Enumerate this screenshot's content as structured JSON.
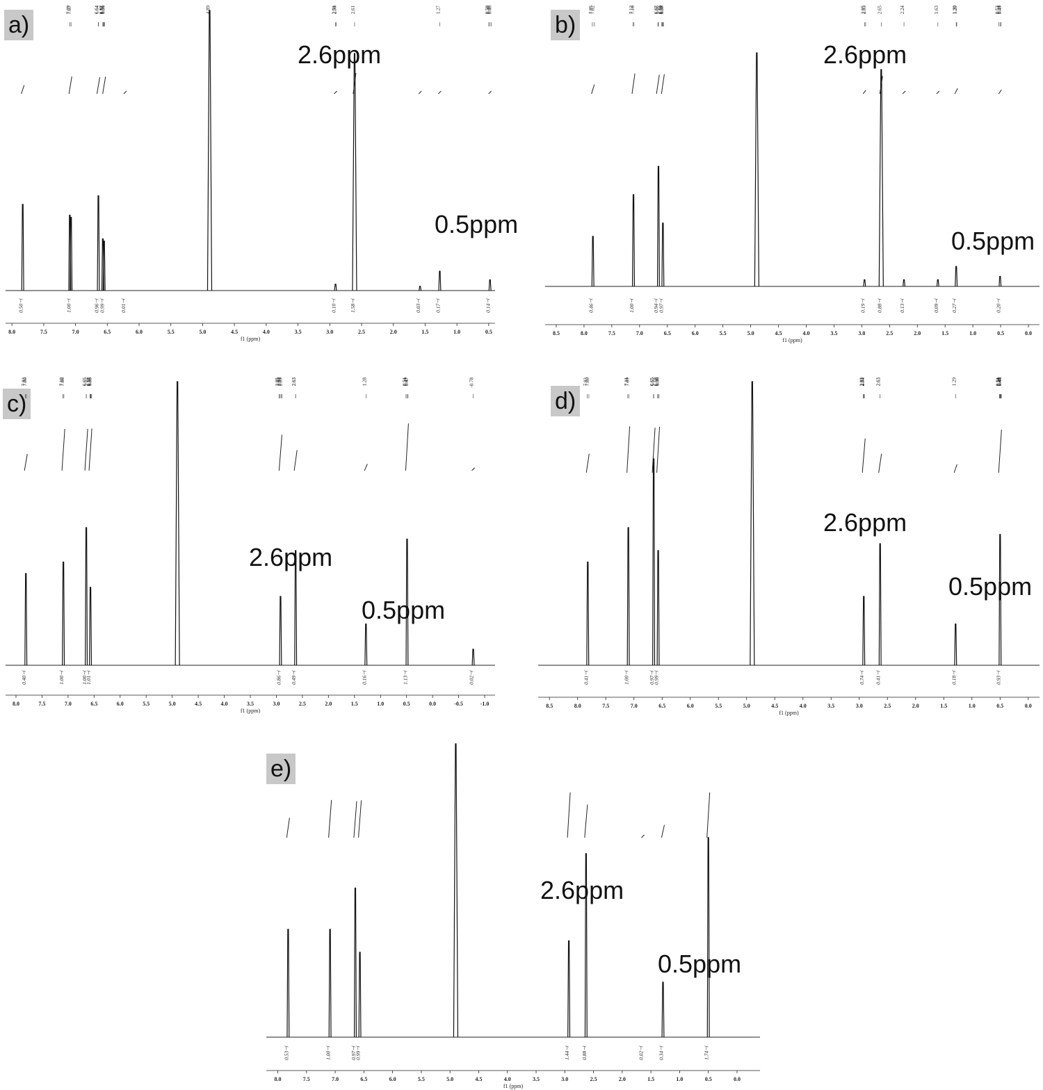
{
  "figure": {
    "annotations": {
      "peak_a": "2.6ppm",
      "peak_b": "0.5ppm"
    }
  },
  "chart_data": [
    {
      "panel": "a)",
      "type": "line",
      "xlabel": "f1 (ppm)",
      "xlim": [
        8.1,
        0.4
      ],
      "ticks": [
        8.0,
        7.5,
        7.0,
        6.5,
        6.0,
        5.5,
        5.0,
        4.5,
        4.0,
        3.5,
        3.0,
        2.5,
        2.0,
        1.5,
        1.0,
        0.5
      ],
      "peak_list": [
        "7.09",
        "7.07",
        "6.64",
        "6.64",
        "6.57",
        "6.56",
        "6.55",
        "6.54",
        "4.89",
        "2.91",
        "2.90",
        "2.61",
        "1.27",
        "0.50",
        "0.48",
        "0.46"
      ],
      "peaks": [
        {
          "ppm": 7.83,
          "h": 0.4
        },
        {
          "ppm": 7.09,
          "h": 0.35
        },
        {
          "ppm": 7.07,
          "h": 0.34
        },
        {
          "ppm": 6.64,
          "h": 0.44
        },
        {
          "ppm": 6.57,
          "h": 0.24
        },
        {
          "ppm": 6.55,
          "h": 0.23
        },
        {
          "ppm": 4.89,
          "h": 1.3
        },
        {
          "ppm": 2.91,
          "h": 0.03
        },
        {
          "ppm": 2.61,
          "h": 1.1
        },
        {
          "ppm": 1.58,
          "h": 0.02
        },
        {
          "ppm": 1.27,
          "h": 0.09
        },
        {
          "ppm": 0.48,
          "h": 0.05
        }
      ],
      "integrals": [
        {
          "ppm": 7.83,
          "value": "0.50"
        },
        {
          "ppm": 7.08,
          "value": "1.00"
        },
        {
          "ppm": 6.64,
          "value": "0.96"
        },
        {
          "ppm": 6.55,
          "value": "0.99"
        },
        {
          "ppm": 6.22,
          "value": "0.01"
        },
        {
          "ppm": 2.91,
          "value": "0.10"
        },
        {
          "ppm": 2.61,
          "value": "1.58"
        },
        {
          "ppm": 1.58,
          "value": "0.03"
        },
        {
          "ppm": 1.27,
          "value": "0.17"
        },
        {
          "ppm": 0.48,
          "value": "0.14"
        }
      ]
    },
    {
      "panel": "b)",
      "type": "line",
      "xlabel": "f1 (ppm)",
      "xlim": [
        8.7,
        -0.2
      ],
      "ticks": [
        8.5,
        8.0,
        7.5,
        7.0,
        6.5,
        6.0,
        5.5,
        5.0,
        4.5,
        4.0,
        3.5,
        3.0,
        2.5,
        2.0,
        1.5,
        1.0,
        0.5,
        0.0
      ],
      "peak_list": [
        "7.85",
        "7.82",
        "7.12",
        "7.10",
        "6.67",
        "6.66",
        "6.60",
        "6.59",
        "6.58",
        "6.57",
        "2.95",
        "2.93",
        "2.65",
        "2.24",
        "1.63",
        "1.30",
        "1.29",
        "0.53",
        "0.51",
        "0.49"
      ],
      "peaks": [
        {
          "ppm": 7.84,
          "h": 0.3
        },
        {
          "ppm": 7.11,
          "h": 0.55
        },
        {
          "ppm": 6.66,
          "h": 0.72
        },
        {
          "ppm": 6.58,
          "h": 0.38
        },
        {
          "ppm": 4.89,
          "h": 1.4
        },
        {
          "ppm": 2.95,
          "h": 0.04
        },
        {
          "ppm": 2.65,
          "h": 1.3
        },
        {
          "ppm": 2.24,
          "h": 0.04
        },
        {
          "ppm": 1.63,
          "h": 0.04
        },
        {
          "ppm": 1.3,
          "h": 0.12
        },
        {
          "ppm": 0.51,
          "h": 0.06
        }
      ],
      "integrals": [
        {
          "ppm": 7.84,
          "value": "0.46"
        },
        {
          "ppm": 7.11,
          "value": "1.00"
        },
        {
          "ppm": 6.67,
          "value": "0.94"
        },
        {
          "ppm": 6.58,
          "value": "0.97"
        },
        {
          "ppm": 2.95,
          "value": "0.19"
        },
        {
          "ppm": 2.65,
          "value": "0.88"
        },
        {
          "ppm": 2.24,
          "value": "0.13"
        },
        {
          "ppm": 1.63,
          "value": "0.09"
        },
        {
          "ppm": 1.3,
          "value": "0.27"
        },
        {
          "ppm": 0.51,
          "value": "0.20"
        }
      ]
    },
    {
      "panel": "c)",
      "type": "line",
      "xlabel": "f1 (ppm)",
      "xlim": [
        8.2,
        -1.2
      ],
      "ticks": [
        8.0,
        7.5,
        7.0,
        6.5,
        6.0,
        5.5,
        5.0,
        4.5,
        4.0,
        3.5,
        3.0,
        2.5,
        2.0,
        1.5,
        1.0,
        0.5,
        0.0,
        -0.5,
        -1.0
      ],
      "peak_list": [
        "7.82",
        "7.80",
        "7.10",
        "7.08",
        "6.65",
        "6.65",
        "6.58",
        "6.57",
        "6.56",
        "6.55",
        "2.95",
        "2.93",
        "2.91",
        "2.89",
        "2.63",
        "2.63",
        "1.28",
        "0.51",
        "0.49",
        "0.47",
        "-0.78"
      ],
      "peaks": [
        {
          "ppm": 7.81,
          "h": 0.4
        },
        {
          "ppm": 7.09,
          "h": 0.45
        },
        {
          "ppm": 6.65,
          "h": 0.6
        },
        {
          "ppm": 6.57,
          "h": 0.34
        },
        {
          "ppm": 4.9,
          "h": 1.5
        },
        {
          "ppm": 2.92,
          "h": 0.3
        },
        {
          "ppm": 2.63,
          "h": 0.5
        },
        {
          "ppm": 1.28,
          "h": 0.18
        },
        {
          "ppm": 0.49,
          "h": 0.55
        },
        {
          "ppm": -0.78,
          "h": 0.07
        }
      ],
      "integrals": [
        {
          "ppm": 7.81,
          "value": "0.40"
        },
        {
          "ppm": 7.09,
          "value": "1.00"
        },
        {
          "ppm": 6.65,
          "value": "1.00"
        },
        {
          "ppm": 6.57,
          "value": "1.01"
        },
        {
          "ppm": 2.92,
          "value": "0.86"
        },
        {
          "ppm": 2.63,
          "value": "0.49"
        },
        {
          "ppm": 1.28,
          "value": "0.16"
        },
        {
          "ppm": 0.49,
          "value": "1.13"
        },
        {
          "ppm": -0.78,
          "value": "0.02"
        }
      ]
    },
    {
      "panel": "d)",
      "type": "line",
      "xlabel": "f1 (ppm)",
      "xlim": [
        8.7,
        -0.2
      ],
      "ticks": [
        8.5,
        8.0,
        7.5,
        7.0,
        6.5,
        6.0,
        5.5,
        5.0,
        4.5,
        4.0,
        3.5,
        3.0,
        2.5,
        2.0,
        1.5,
        1.0,
        0.5,
        0.0
      ],
      "peak_list": [
        "7.83",
        "7.80",
        "7.11",
        "7.09",
        "6.65",
        "6.65",
        "6.65",
        "6.58",
        "6.58",
        "6.58",
        "6.56",
        "6.56",
        "6.56",
        "2.93",
        "2.92",
        "2.91",
        "2.63",
        "2.63",
        "1.29",
        "0.51",
        "0.51",
        "0.50",
        "0.49",
        "0.48",
        "0.48"
      ],
      "peaks": [
        {
          "ppm": 7.82,
          "h": 0.45
        },
        {
          "ppm": 7.1,
          "h": 0.6
        },
        {
          "ppm": 6.65,
          "h": 0.9
        },
        {
          "ppm": 6.57,
          "h": 0.5
        },
        {
          "ppm": 4.9,
          "h": 1.4
        },
        {
          "ppm": 2.92,
          "h": 0.3
        },
        {
          "ppm": 2.63,
          "h": 0.53
        },
        {
          "ppm": 1.29,
          "h": 0.18
        },
        {
          "ppm": 0.5,
          "h": 0.57
        }
      ],
      "integrals": [
        {
          "ppm": 7.82,
          "value": "0.41"
        },
        {
          "ppm": 7.1,
          "value": "1.00"
        },
        {
          "ppm": 6.65,
          "value": "0.97"
        },
        {
          "ppm": 6.57,
          "value": "0.99"
        },
        {
          "ppm": 2.92,
          "value": "0.74"
        },
        {
          "ppm": 2.63,
          "value": "0.41"
        },
        {
          "ppm": 1.29,
          "value": "0.18"
        },
        {
          "ppm": 0.5,
          "value": "0.93"
        }
      ]
    },
    {
      "panel": "e)",
      "type": "line",
      "xlabel": "f1 (ppm)",
      "xlim": [
        8.2,
        -0.4
      ],
      "ticks": [
        8.0,
        7.5,
        7.0,
        6.5,
        6.0,
        5.5,
        5.0,
        4.5,
        4.0,
        3.5,
        3.0,
        2.5,
        2.0,
        1.5,
        1.0,
        0.5,
        0.0
      ],
      "peak_list": [],
      "peaks": [
        {
          "ppm": 7.82,
          "h": 0.47
        },
        {
          "ppm": 7.09,
          "h": 0.47
        },
        {
          "ppm": 6.65,
          "h": 0.65
        },
        {
          "ppm": 6.57,
          "h": 0.37
        },
        {
          "ppm": 4.9,
          "h": 1.3
        },
        {
          "ppm": 2.93,
          "h": 0.42
        },
        {
          "ppm": 2.63,
          "h": 0.8
        },
        {
          "ppm": 1.29,
          "h": 0.24
        },
        {
          "ppm": 0.5,
          "h": 0.87
        }
      ],
      "integrals": [
        {
          "ppm": 7.82,
          "value": "0.53"
        },
        {
          "ppm": 7.09,
          "value": "1.00"
        },
        {
          "ppm": 6.65,
          "value": "0.97"
        },
        {
          "ppm": 6.57,
          "value": "0.99"
        },
        {
          "ppm": 2.93,
          "value": "1.44"
        },
        {
          "ppm": 2.63,
          "value": "0.88"
        },
        {
          "ppm": 1.64,
          "value": "0.02"
        },
        {
          "ppm": 1.29,
          "value": "0.34"
        },
        {
          "ppm": 0.5,
          "value": "1.74"
        }
      ]
    }
  ]
}
